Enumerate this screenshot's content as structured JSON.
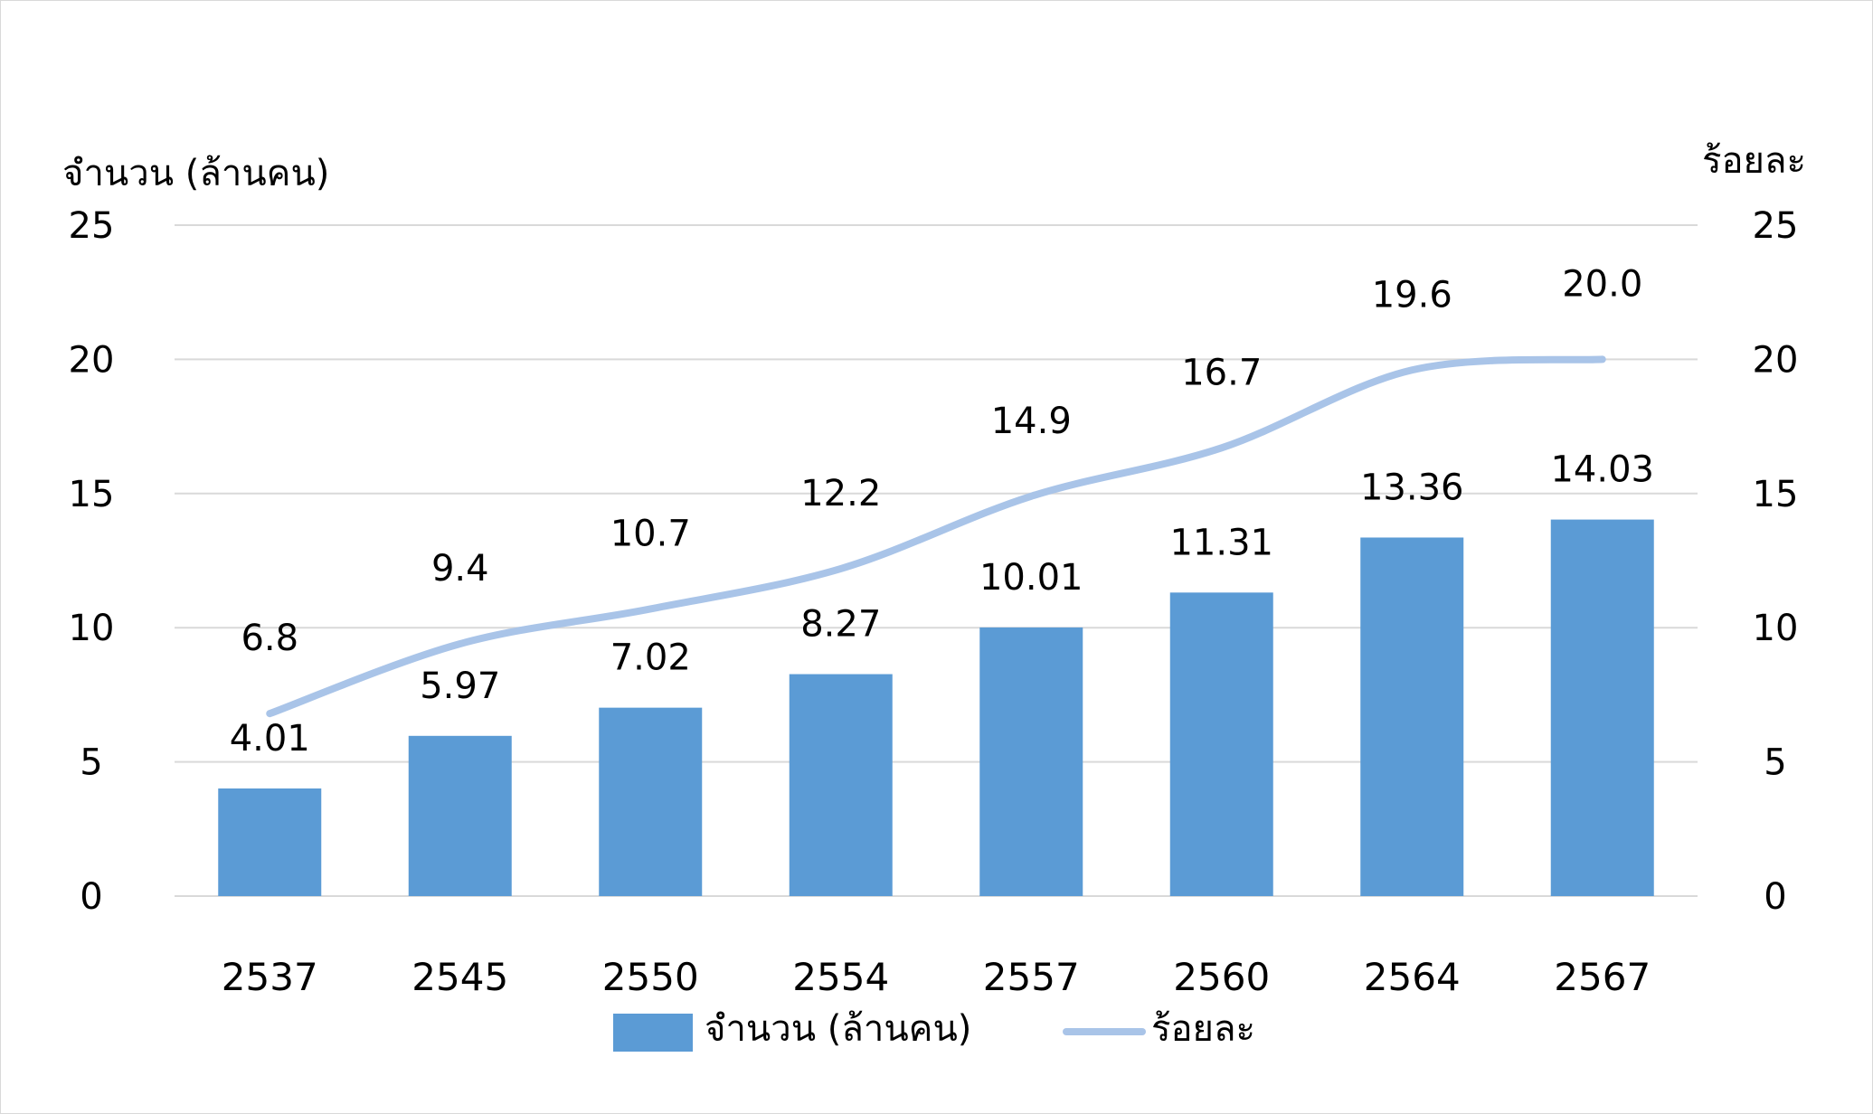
{
  "chart_data": {
    "type": "bar",
    "categories": [
      "2537",
      "2545",
      "2550",
      "2554",
      "2557",
      "2560",
      "2564",
      "2567"
    ],
    "series": [
      {
        "name": "จำนวน (ล้านคน)",
        "type": "bar",
        "axis": "left",
        "color": "#5b9bd5",
        "values": [
          4.01,
          5.97,
          7.02,
          8.27,
          10.01,
          11.31,
          13.36,
          14.03
        ],
        "labels": [
          "4.01",
          "5.97",
          "7.02",
          "8.27",
          "10.01",
          "11.31",
          "13.36",
          "14.03"
        ]
      },
      {
        "name": "ร้อยละ",
        "type": "line",
        "axis": "right",
        "color": "#a9c4e8",
        "smooth": true,
        "values": [
          6.8,
          9.4,
          10.7,
          12.2,
          14.9,
          16.7,
          19.6,
          20.0
        ],
        "labels": [
          "6.8",
          "9.4",
          "10.7",
          "12.2",
          "14.9",
          "16.7",
          "19.6",
          "20.0"
        ]
      }
    ],
    "y_left": {
      "label": "จำนวน (ล้านคน)",
      "range": [
        0,
        25
      ],
      "ticks": [
        "0",
        "5",
        "10",
        "15",
        "20",
        "25"
      ]
    },
    "y_right": {
      "label": "ร้อยละ",
      "range": [
        0,
        25
      ],
      "ticks": [
        "0",
        "5",
        "10",
        "15",
        "20",
        "25"
      ]
    },
    "grid": true,
    "gridline_color": "#d9d9d9",
    "legend_position": "bottom"
  }
}
